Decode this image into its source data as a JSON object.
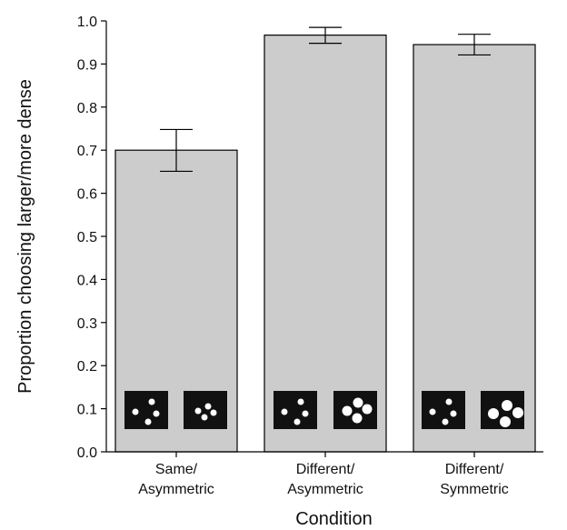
{
  "chart_data": {
    "type": "bar",
    "title": "",
    "xlabel": "Condition",
    "ylabel": "Proportion choosing larger/more dense",
    "ylim": [
      0,
      1.0
    ],
    "yticks": [
      "0.0",
      "0.1",
      "0.2",
      "0.3",
      "0.4",
      "0.5",
      "0.6",
      "0.7",
      "0.8",
      "0.9",
      "1.0"
    ],
    "categories": [
      [
        "Same/",
        "Asymmetric"
      ],
      [
        "Different/",
        "Asymmetric"
      ],
      [
        "Different/",
        "Symmetric"
      ]
    ],
    "values": [
      0.7,
      0.967,
      0.945
    ],
    "error_bars": [
      {
        "low": 0.651,
        "high": 0.748
      },
      {
        "low": 0.948,
        "high": 0.985
      },
      {
        "low": 0.921,
        "high": 0.969
      }
    ],
    "bar_color": "#cccccc",
    "stimulus_icons": [
      [
        "dots-small-sparse",
        "dots-small-clustered"
      ],
      [
        "dots-small-sparse",
        "dots-large-clustered"
      ],
      [
        "dots-small-sparse",
        "dots-large-symmetric"
      ]
    ],
    "grid": false
  }
}
